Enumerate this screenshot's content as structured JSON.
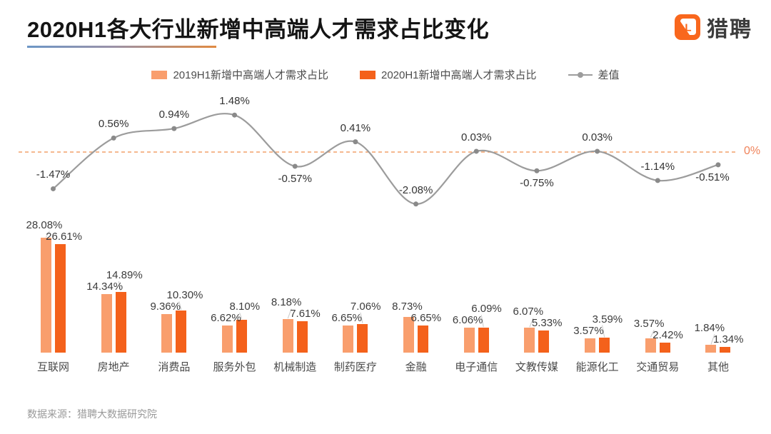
{
  "header": {
    "title": "2020H1各大行业新增中高端人才需求占比变化",
    "logo_text": "猎聘",
    "logo_color": "#F9671D",
    "logo_glyph": "liepin-l-play-icon"
  },
  "legend": [
    {
      "label": "2019H1新增中高端人才需求占比",
      "color": "#F99E6D",
      "marker": "swatch"
    },
    {
      "label": "2020H1新增中高端人才需求占比",
      "color": "#F4611B",
      "marker": "swatch"
    },
    {
      "label": "差值",
      "color": "#9C9C9C",
      "marker": "line-dot"
    }
  ],
  "chart_data": {
    "type": "bar",
    "title": "2020H1各大行业新增中高端人才需求占比变化",
    "categories": [
      "互联网",
      "房地产",
      "消费品",
      "服务外包",
      "机械制造",
      "制药医疗",
      "金融",
      "电子通信",
      "文教传媒",
      "能源化工",
      "交通贸易",
      "其他"
    ],
    "series": [
      {
        "name": "2019H1新增中高端人才需求占比",
        "color": "#F99E6D",
        "values": [
          28.08,
          14.34,
          9.36,
          6.62,
          8.18,
          6.65,
          8.73,
          6.06,
          6.07,
          3.57,
          3.57,
          1.84
        ]
      },
      {
        "name": "2020H1新增中高端人才需求占比",
        "color": "#F4611B",
        "values": [
          26.61,
          14.89,
          10.3,
          8.1,
          7.61,
          7.06,
          6.65,
          6.09,
          5.33,
          3.59,
          2.42,
          1.34
        ]
      }
    ],
    "line_series": {
      "name": "差值",
      "color": "#9C9C9C",
      "marker_color": "#8A8A8A",
      "values": [
        -1.47,
        0.56,
        0.94,
        1.48,
        -0.57,
        0.41,
        -2.08,
        0.03,
        -0.75,
        0.03,
        -1.14,
        -0.51
      ]
    },
    "zero_line": {
      "label": "0%",
      "color": "#F2A06A",
      "label_color": "#F0835A"
    },
    "value_suffix": "%",
    "ylim_bars": [
      0,
      30
    ],
    "ylim_diff": [
      -2.5,
      2.5
    ],
    "grid": false,
    "legend_position": "top-center"
  },
  "footer": {
    "source": "数据来源：猎聘大数据研究院"
  }
}
